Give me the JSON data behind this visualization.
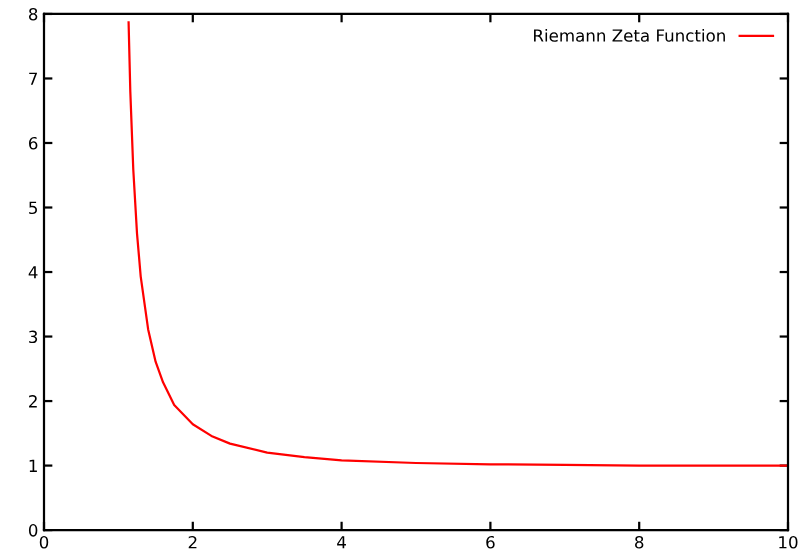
{
  "chart_data": {
    "type": "line",
    "xlim": [
      0,
      10
    ],
    "ylim": [
      0,
      8
    ],
    "xticks": [
      0,
      2,
      4,
      6,
      8,
      10
    ],
    "yticks": [
      0,
      1,
      2,
      3,
      4,
      5,
      6,
      7,
      8
    ],
    "grid": false,
    "legend": "top right",
    "marker": "none",
    "line_style": "solid",
    "series": [
      {
        "name": "Riemann Zeta Function",
        "color": "#ff0000",
        "x": [
          1.137,
          1.16,
          1.2,
          1.25,
          1.3,
          1.4,
          1.5,
          1.6,
          1.75,
          2,
          2.25,
          2.5,
          3,
          3.5,
          4,
          5,
          6,
          7,
          8,
          9,
          10
        ],
        "values": [
          7.87,
          6.8,
          5.59,
          4.6,
          3.93,
          3.11,
          2.61,
          2.29,
          1.94,
          1.64,
          1.46,
          1.34,
          1.2,
          1.13,
          1.08,
          1.04,
          1.02,
          1.01,
          1.0,
          1.0,
          1.0
        ]
      }
    ]
  }
}
